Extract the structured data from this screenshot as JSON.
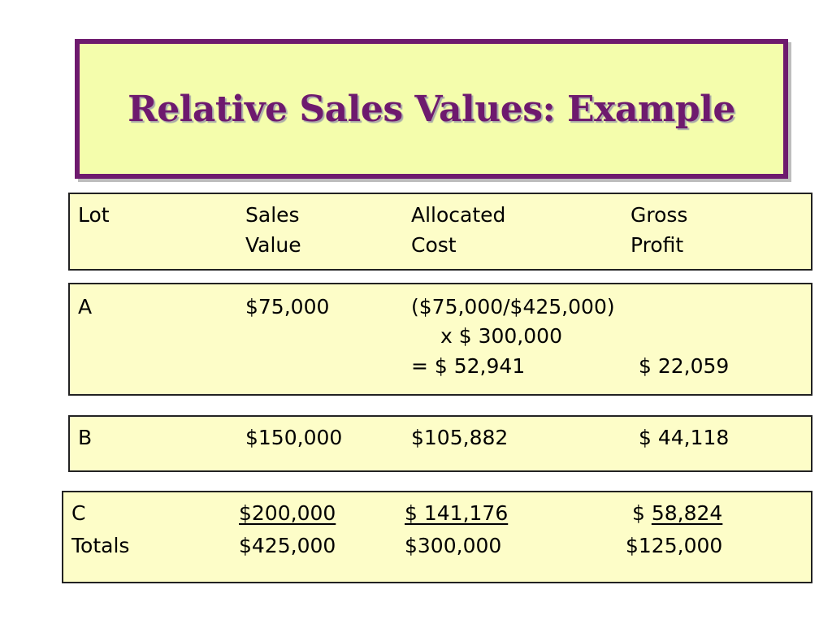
{
  "title": "Relative Sales Values: Example",
  "header": {
    "col_lot": "Lot",
    "col_sales_1": "Sales",
    "col_sales_2": "Value",
    "col_allocated_1": "Allocated",
    "col_allocated_2": "Cost",
    "col_gross_1": "Gross",
    "col_gross_2": "Profit"
  },
  "row_a": {
    "lot": "A",
    "sales": "$75,000",
    "allocated_line1": "($75,000/$425,000)",
    "allocated_line2": "x  $ 300,000",
    "allocated_line3": "= $ 52,941",
    "gross": "$ 22,059"
  },
  "row_b": {
    "lot": "B",
    "sales": "$150,000",
    "allocated": "$105,882",
    "gross": "$ 44,118"
  },
  "row_c": {
    "lot": "C",
    "sales": "$200,000",
    "allocated": "$ 141,176",
    "gross_prefix": "$ ",
    "gross": "58,824"
  },
  "totals": {
    "label": "Totals",
    "sales": "$425,000",
    "allocated": "$300,000",
    "gross": "$125,000"
  },
  "colors": {
    "title_fill": "#f4fdac",
    "title_border": "#6e1a6e",
    "title_text": "#6e1a6e",
    "panel_fill": "#fdfdc8",
    "panel_border": "#222222"
  }
}
